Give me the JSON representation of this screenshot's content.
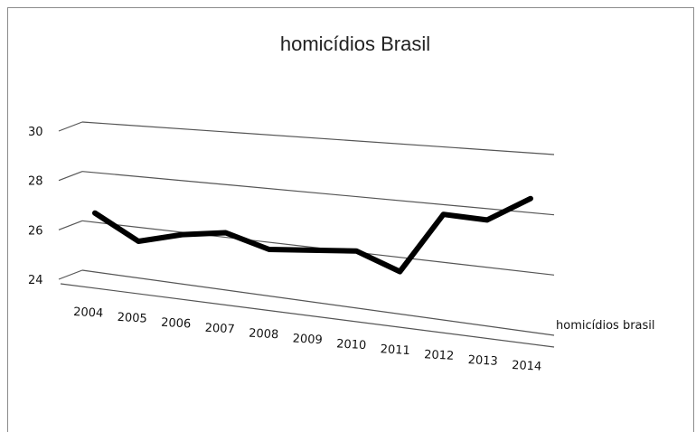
{
  "chart_data": {
    "type": "line",
    "title": "homicídios Brasil",
    "categories": [
      "2004",
      "2005",
      "2006",
      "2007",
      "2008",
      "2009",
      "2010",
      "2011",
      "2012",
      "2013",
      "2014"
    ],
    "series": [
      {
        "name": "homicídios brasil",
        "values": [
          26.5,
          25.5,
          25.9,
          26.1,
          25.6,
          25.7,
          25.8,
          25.2,
          27.3,
          27.2,
          28.0
        ]
      }
    ],
    "yticks": [
      "24",
      "26",
      "28",
      "30"
    ],
    "ylim": [
      24,
      30
    ],
    "grid": true,
    "legend_position": "right",
    "style": "3d-perspective line"
  }
}
